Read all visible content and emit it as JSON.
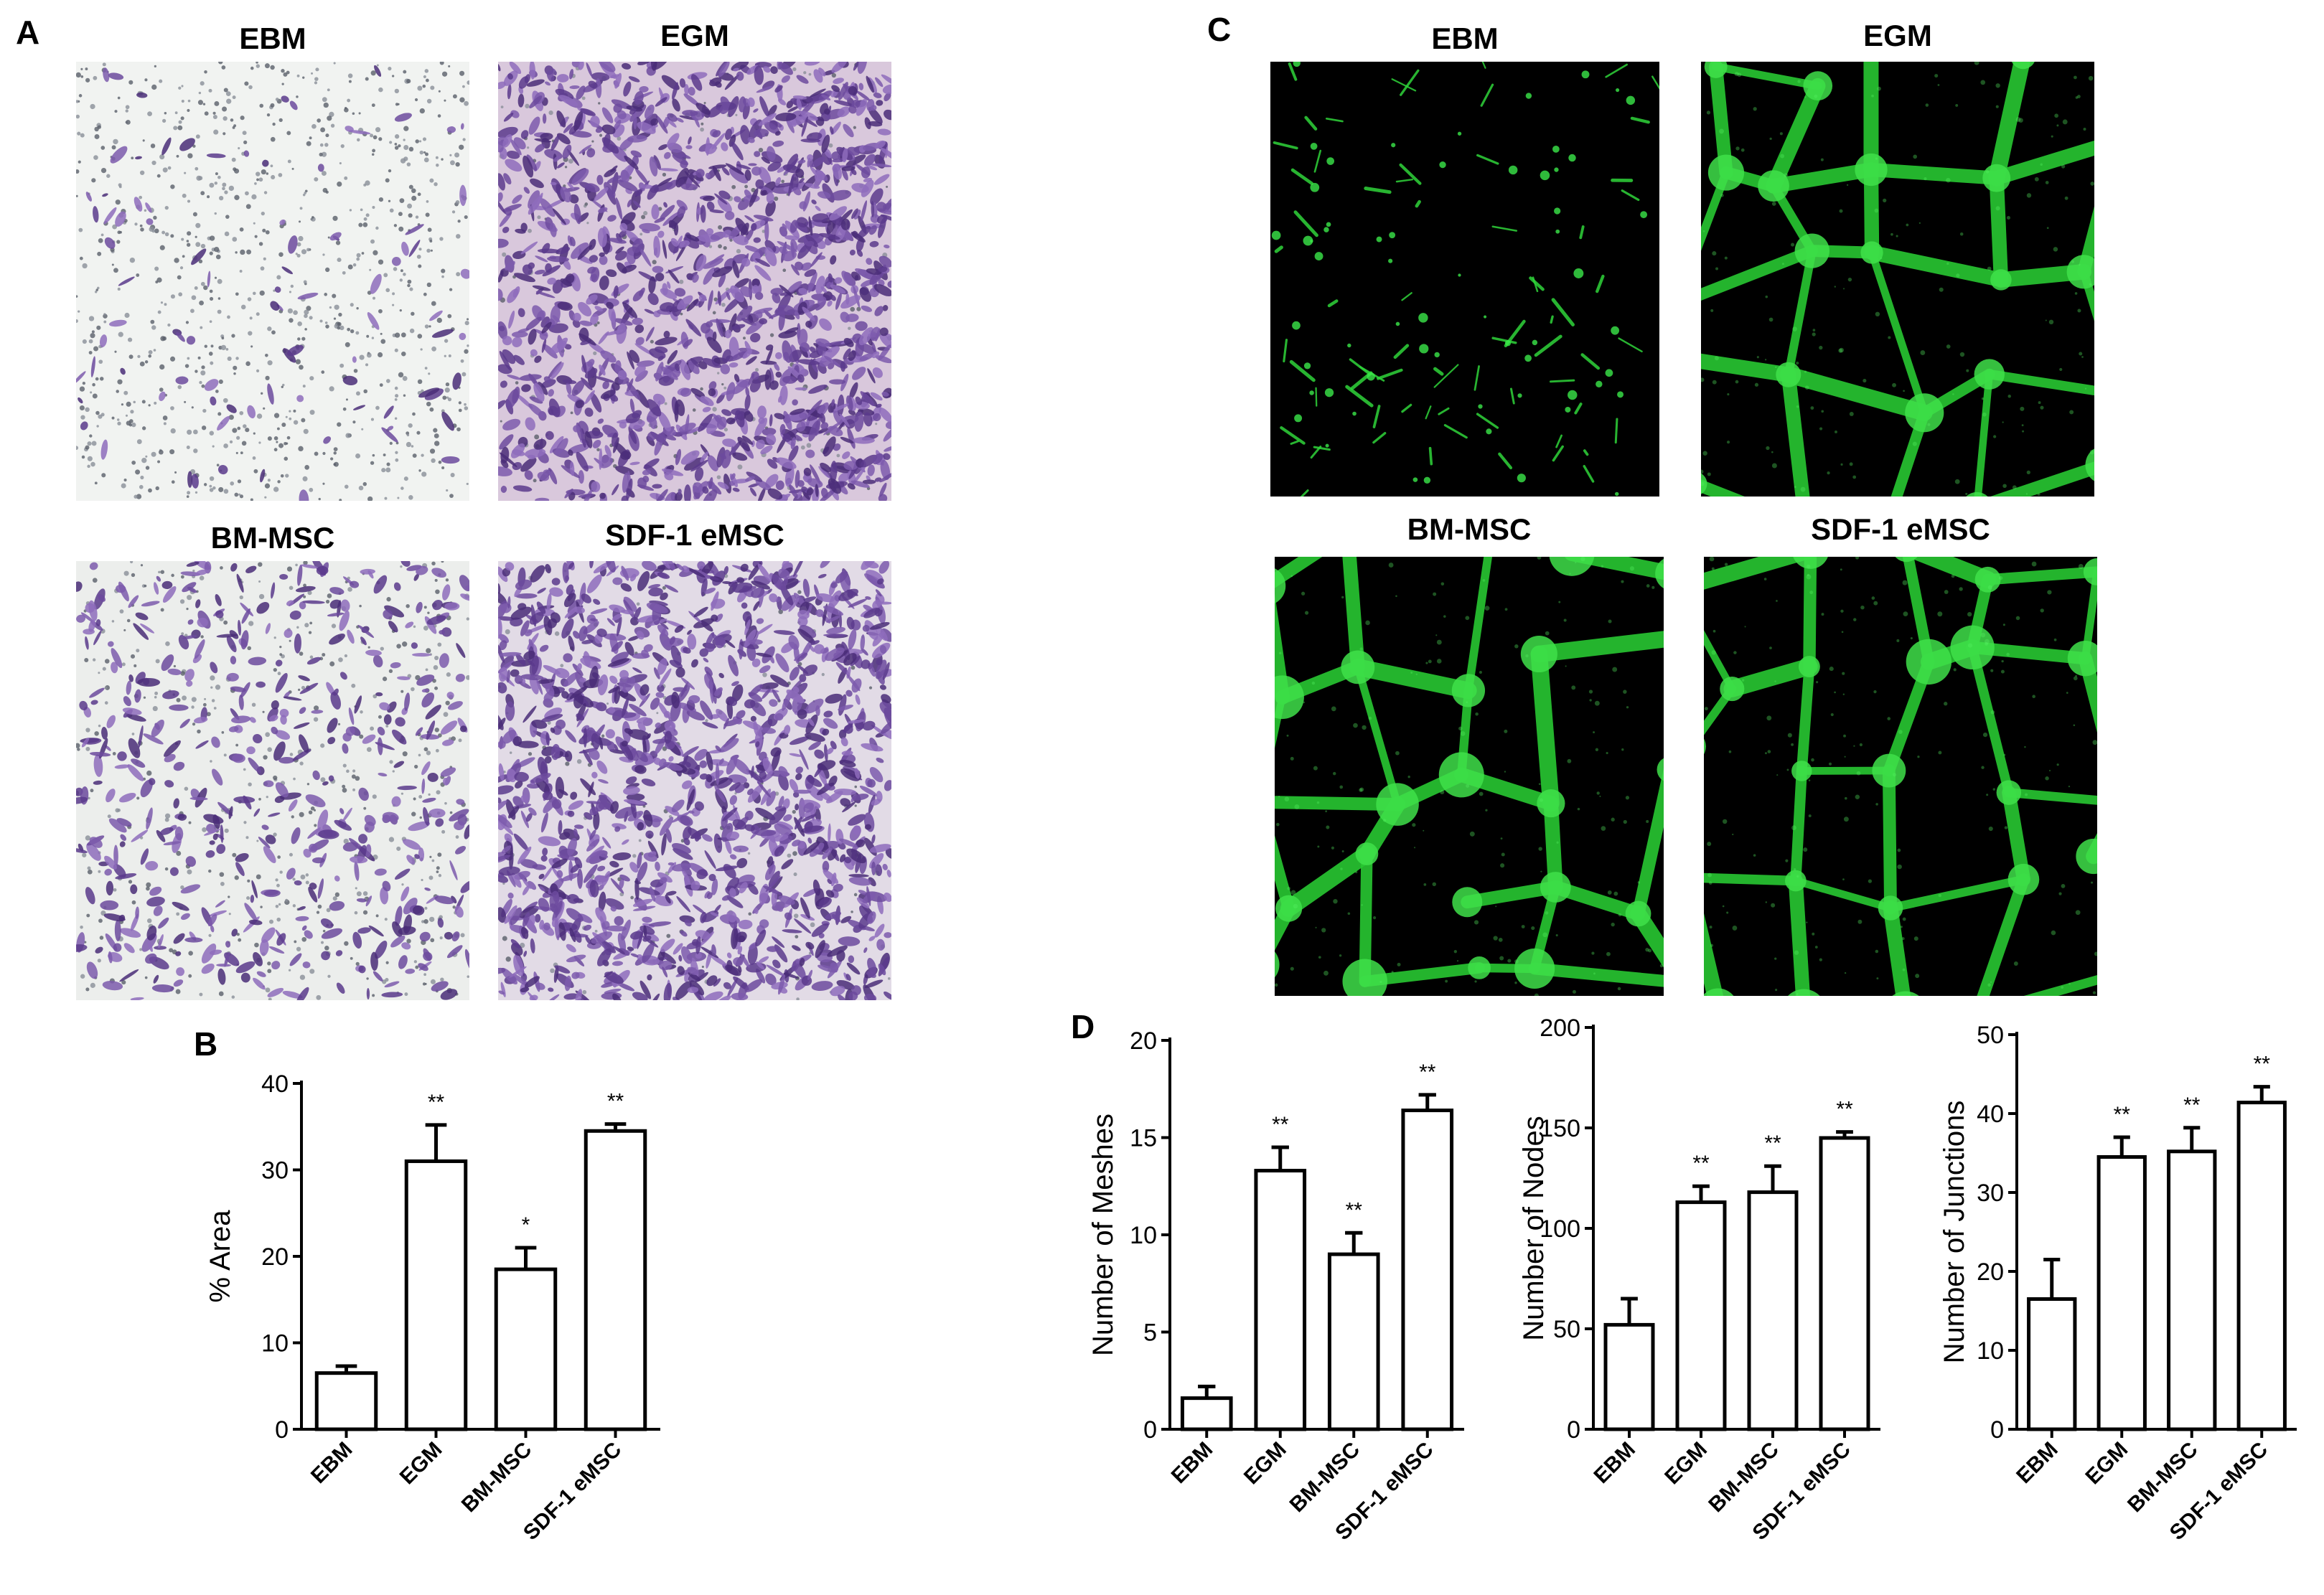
{
  "figure": {
    "panel_a": {
      "letter": "A",
      "images": [
        {
          "title": "EBM",
          "stain": "crystal-violet",
          "density": "sparse"
        },
        {
          "title": "EGM",
          "stain": "crystal-violet",
          "density": "dense"
        },
        {
          "title": "BM-MSC",
          "stain": "crystal-violet",
          "density": "medium"
        },
        {
          "title": "SDF-1 eMSC",
          "stain": "crystal-violet",
          "density": "dense"
        }
      ]
    },
    "panel_b": {
      "letter": "B"
    },
    "panel_c": {
      "letter": "C",
      "images": [
        {
          "title": "EBM",
          "stain": "green-fluorescence",
          "density": "sparse"
        },
        {
          "title": "EGM",
          "stain": "green-fluorescence",
          "density": "network"
        },
        {
          "title": "BM-MSC",
          "stain": "green-fluorescence",
          "density": "network"
        },
        {
          "title": "SDF-1 eMSC",
          "stain": "green-fluorescence",
          "density": "network"
        }
      ]
    },
    "panel_d": {
      "letter": "D"
    }
  },
  "chart_data": [
    {
      "id": "B",
      "type": "bar",
      "categories": [
        "EBM",
        "EGM",
        "BM-MSC",
        "SDF-1 eMSC"
      ],
      "values": [
        6.5,
        31,
        18.5,
        34.5
      ],
      "errors": [
        0.8,
        4.2,
        2.5,
        0.8
      ],
      "significance": [
        "",
        "**",
        "*",
        "**"
      ],
      "ylabel": "% Area",
      "ylim": [
        0,
        40
      ],
      "yticks": [
        "0",
        "10",
        "20",
        "30",
        "40"
      ]
    },
    {
      "id": "D1",
      "type": "bar",
      "categories": [
        "EBM",
        "EGM",
        "BM-MSC",
        "SDF-1 eMSC"
      ],
      "values": [
        1.6,
        13.3,
        9.0,
        16.4
      ],
      "errors": [
        0.6,
        1.2,
        1.1,
        0.8
      ],
      "significance": [
        "",
        "**",
        "**",
        "**"
      ],
      "ylabel": "Number of Meshes",
      "ylim": [
        0,
        20
      ],
      "yticks": [
        "0",
        "5",
        "10",
        "15",
        "20"
      ]
    },
    {
      "id": "D2",
      "type": "bar",
      "categories": [
        "EBM",
        "EGM",
        "BM-MSC",
        "SDF-1 eMSC"
      ],
      "values": [
        52,
        113,
        118,
        145
      ],
      "errors": [
        13,
        8,
        13,
        3
      ],
      "significance": [
        "",
        "**",
        "**",
        "**"
      ],
      "ylabel": "Number of Nodes",
      "ylim": [
        0,
        200
      ],
      "yticks": [
        "0",
        "50",
        "100",
        "150",
        "200"
      ]
    },
    {
      "id": "D3",
      "type": "bar",
      "categories": [
        "EBM",
        "EGM",
        "BM-MSC",
        "SDF-1 eMSC"
      ],
      "values": [
        16.5,
        34.5,
        35.2,
        41.4
      ],
      "errors": [
        5,
        2.5,
        3,
        2
      ],
      "significance": [
        "",
        "**",
        "**",
        "**"
      ],
      "ylabel": "Number of Junctions",
      "ylim": [
        0,
        50
      ],
      "yticks": [
        "0",
        "10",
        "20",
        "30",
        "40",
        "50"
      ]
    }
  ]
}
